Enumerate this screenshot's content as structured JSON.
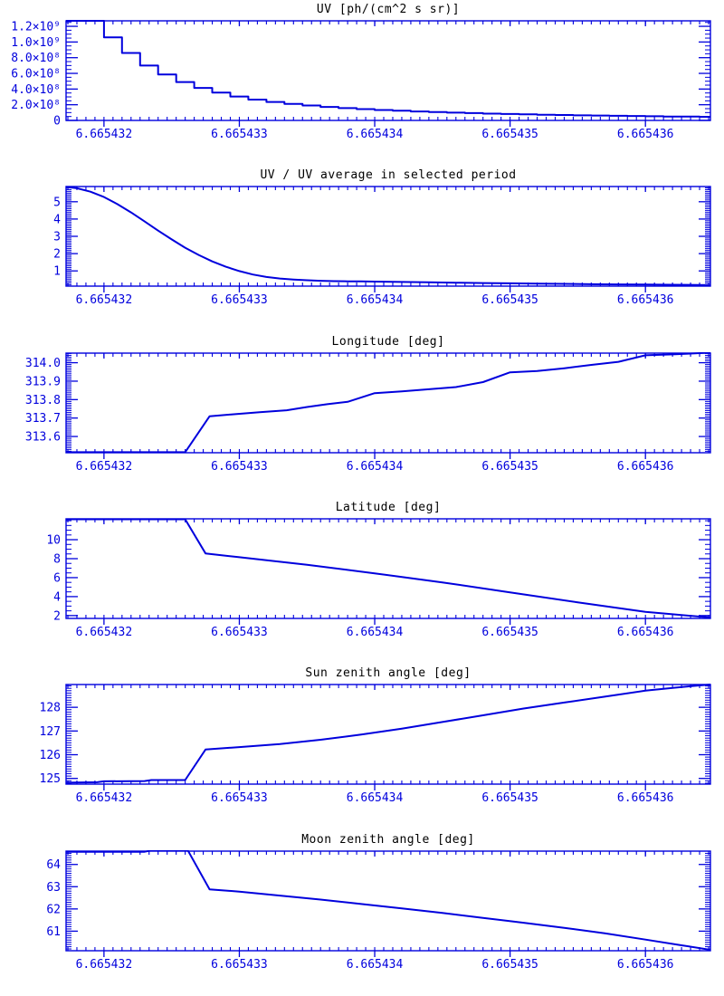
{
  "page": {
    "background": "#ffffff",
    "accent": "#0000dd"
  },
  "x_axis": {
    "tick_labels": [
      "6.665432",
      "6.665433",
      "6.665434",
      "6.665435",
      "6.665436"
    ],
    "tick_values_rel": [
      1.0,
      2.0,
      3.0,
      4.0,
      5.0
    ],
    "xlim_rel": [
      0.72,
      5.48
    ],
    "x_encoding": {
      "offset": 6.665431,
      "scale": 1e-06
    },
    "minor_intervals_per_major": 15
  },
  "chart_data": [
    {
      "type": "step",
      "title": "UV [ph/(cm^2 s sr)]",
      "ylabel": "",
      "xlabel": "",
      "ylim": [
        0,
        1270000000.0
      ],
      "y_ticks": [
        0,
        200000000.0,
        400000000.0,
        600000000.0,
        800000000.0,
        1000000000.0,
        1200000000.0
      ],
      "y_tick_labels": [
        "0",
        "2.0×10⁸",
        "4.0×10⁸",
        "6.0×10⁸",
        "8.0×10⁸",
        "1.0×10⁹",
        "1.2×10⁹"
      ],
      "y_minor": 3,
      "x_edges_rel": [
        0.72,
        1.0,
        1.1333,
        1.2667,
        1.4,
        1.5333,
        1.6667,
        1.8,
        1.9333,
        2.0667,
        2.2,
        2.3333,
        2.4667,
        2.6,
        2.7333,
        2.8667,
        3.0,
        3.1333,
        3.2667,
        3.4,
        3.5333,
        3.6667,
        3.8,
        3.9333,
        4.0667,
        4.2,
        4.3333,
        4.4667,
        4.6,
        4.7333,
        4.8667,
        5.0,
        5.1333,
        5.2667,
        5.4,
        5.48
      ],
      "values": [
        1270000000.0,
        1060000000.0,
        860000000.0,
        700000000.0,
        585000000.0,
        490000000.0,
        415000000.0,
        355000000.0,
        305000000.0,
        265000000.0,
        235000000.0,
        210000000.0,
        190000000.0,
        172000000.0,
        157000000.0,
        144000000.0,
        133000000.0,
        123000000.0,
        114000000.0,
        106000000.0,
        99000000.0,
        93000000.0,
        87000000.0,
        82000000.0,
        77000000.0,
        73000000.0,
        69000000.0,
        65000000.0,
        62000000.0,
        59000000.0,
        56000000.0,
        53000000.0,
        50000000.0,
        48000000.0,
        46000000.0
      ]
    },
    {
      "type": "line",
      "title": "UV / UV average in selected period",
      "ylabel": "",
      "xlabel": "",
      "ylim": [
        0.12,
        5.88
      ],
      "y_ticks": [
        1,
        2,
        3,
        4,
        5
      ],
      "y_tick_labels": [
        "1",
        "2",
        "3",
        "4",
        "5"
      ],
      "y_minor": 9,
      "x_rel": [
        0.72,
        0.8,
        0.9,
        1.0,
        1.1,
        1.2,
        1.3,
        1.4,
        1.5,
        1.6,
        1.7,
        1.8,
        1.9,
        2.0,
        2.1,
        2.2,
        2.3,
        2.4,
        2.5,
        2.6,
        2.7,
        2.8,
        2.9,
        3.0,
        3.2,
        3.4,
        3.6,
        3.8,
        4.0,
        4.2,
        4.4,
        4.6,
        4.8,
        5.0,
        5.2,
        5.4,
        5.48
      ],
      "values": [
        5.86,
        5.78,
        5.58,
        5.27,
        4.86,
        4.38,
        3.86,
        3.33,
        2.82,
        2.34,
        1.92,
        1.55,
        1.24,
        0.99,
        0.79,
        0.65,
        0.56,
        0.5,
        0.46,
        0.43,
        0.41,
        0.4,
        0.39,
        0.38,
        0.36,
        0.34,
        0.32,
        0.3,
        0.28,
        0.26,
        0.25,
        0.23,
        0.22,
        0.21,
        0.2,
        0.19,
        0.18
      ]
    },
    {
      "type": "line",
      "title": "Longitude [deg]",
      "ylabel": "",
      "xlabel": "",
      "ylim": [
        313.512,
        314.052
      ],
      "y_ticks": [
        313.6,
        313.7,
        313.8,
        313.9,
        314.0
      ],
      "y_tick_labels": [
        "313.6",
        "313.7",
        "313.8",
        "313.9",
        "314.0"
      ],
      "y_minor": 9,
      "x_rel": [
        0.72,
        1.6,
        1.78,
        1.95,
        2.15,
        2.35,
        2.5,
        2.65,
        2.8,
        3.0,
        3.2,
        3.4,
        3.6,
        3.8,
        4.0,
        4.2,
        4.4,
        4.6,
        4.8,
        5.0,
        5.2,
        5.35,
        5.48
      ],
      "values": [
        313.515,
        313.515,
        313.71,
        313.72,
        313.732,
        313.742,
        313.76,
        313.775,
        313.788,
        313.835,
        313.845,
        313.856,
        313.868,
        313.895,
        313.948,
        313.955,
        313.97,
        313.988,
        314.005,
        314.04,
        314.045,
        314.05,
        314.055
      ]
    },
    {
      "type": "line",
      "title": "Latitude [deg]",
      "ylabel": "",
      "xlabel": "",
      "ylim": [
        1.7,
        12.2
      ],
      "y_ticks": [
        2,
        4,
        6,
        8,
        10
      ],
      "y_tick_labels": [
        "2",
        "4",
        "6",
        "8",
        "10"
      ],
      "y_minor": 3,
      "x_rel": [
        0.72,
        1.6,
        1.75,
        2.0,
        2.5,
        3.0,
        3.5,
        4.0,
        4.5,
        5.0,
        5.48
      ],
      "values": [
        12.15,
        12.15,
        8.55,
        8.15,
        7.35,
        6.45,
        5.5,
        4.45,
        3.4,
        2.4,
        1.8
      ]
    },
    {
      "type": "line",
      "title": "Sun zenith angle [deg]",
      "ylabel": "",
      "xlabel": "",
      "ylim": [
        124.76,
        128.96
      ],
      "y_ticks": [
        125,
        126,
        127,
        128
      ],
      "y_tick_labels": [
        "125",
        "126",
        "127",
        "128"
      ],
      "y_minor": 9,
      "x_rel": [
        0.72,
        0.95,
        1.0,
        1.3,
        1.35,
        1.6,
        1.75,
        2.0,
        2.3,
        2.6,
        2.9,
        3.2,
        3.5,
        3.8,
        4.1,
        4.4,
        4.7,
        5.0,
        5.2,
        5.35,
        5.48
      ],
      "values": [
        124.82,
        124.84,
        124.88,
        124.89,
        124.93,
        124.93,
        126.22,
        126.32,
        126.45,
        126.63,
        126.85,
        127.1,
        127.38,
        127.66,
        127.95,
        128.2,
        128.45,
        128.7,
        128.82,
        128.9,
        128.96
      ]
    },
    {
      "type": "line",
      "title": "Moon zenith angle [deg]",
      "ylabel": "",
      "xlabel": "",
      "ylim": [
        60.12,
        64.6
      ],
      "y_ticks": [
        61,
        62,
        63,
        64
      ],
      "y_tick_labels": [
        "61",
        "62",
        "63",
        "64"
      ],
      "y_minor": 9,
      "x_rel": [
        0.72,
        1.3,
        1.35,
        1.62,
        1.78,
        2.0,
        2.3,
        2.6,
        2.9,
        3.2,
        3.5,
        3.8,
        4.1,
        4.4,
        4.7,
        5.0,
        5.25,
        5.48
      ],
      "values": [
        64.57,
        64.57,
        64.63,
        64.63,
        62.88,
        62.78,
        62.6,
        62.42,
        62.22,
        62.02,
        61.82,
        61.6,
        61.38,
        61.15,
        60.9,
        60.62,
        60.38,
        60.16
      ]
    }
  ]
}
